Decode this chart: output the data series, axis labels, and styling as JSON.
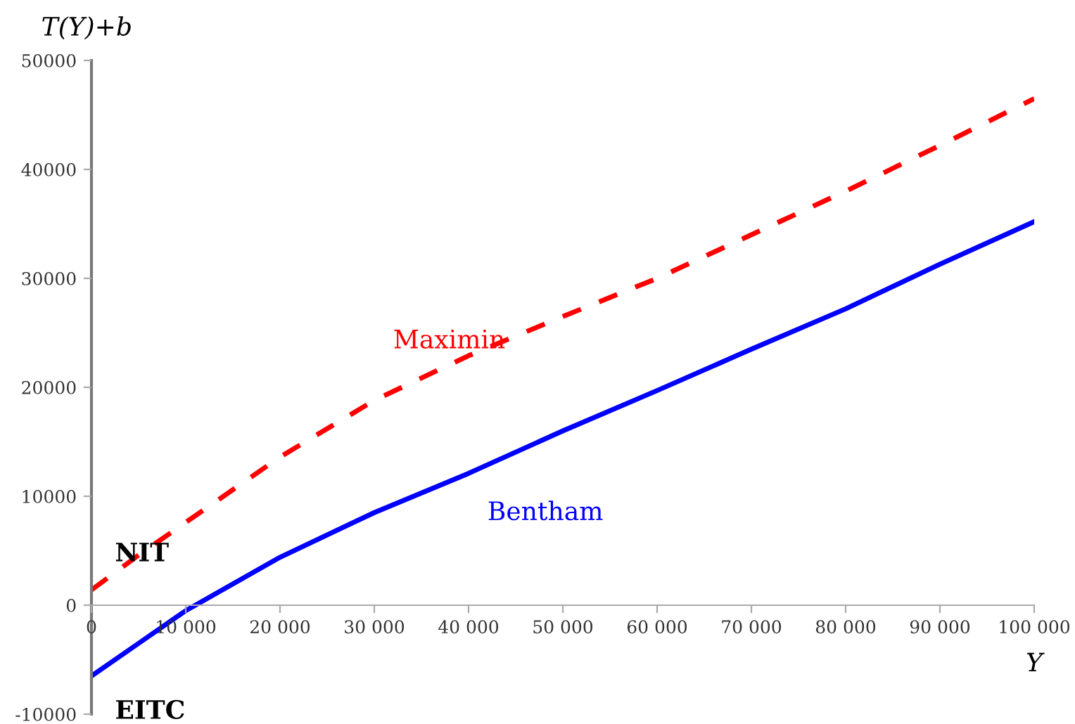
{
  "chart_data": {
    "type": "line",
    "xlabel": "Y",
    "ylabel": "T(Y)+b",
    "x": [
      0,
      5000,
      10000,
      20000,
      30000,
      40000,
      50000,
      60000,
      70000,
      80000,
      90000,
      100000
    ],
    "series": [
      {
        "name": "Maximin",
        "color": "#ff0000",
        "line_style": "dashed",
        "values": [
          1400,
          4600,
          7600,
          13600,
          18800,
          22900,
          26500,
          30000,
          34000,
          38000,
          42200,
          46500
        ]
      },
      {
        "name": "Bentham",
        "color": "#0000ff",
        "line_style": "solid",
        "values": [
          -6500,
          -3500,
          -500,
          4400,
          8500,
          12100,
          16000,
          19700,
          23500,
          27200,
          31300,
          35200
        ]
      }
    ],
    "annotations": [
      {
        "text": "NIT",
        "x": 0,
        "y": 1400
      },
      {
        "text": "EITC",
        "x": 0,
        "y": -6500
      }
    ],
    "xlim": [
      0,
      100000
    ],
    "ylim": [
      -10000,
      50000
    ],
    "xticks": [
      0,
      {
        "value": 10000,
        "label": "10 000"
      },
      {
        "value": 20000,
        "label": "20 000"
      },
      {
        "value": 30000,
        "label": "30 000"
      },
      {
        "value": 40000,
        "label": "40 000"
      },
      {
        "value": 50000,
        "label": "50 000"
      },
      {
        "value": 60000,
        "label": "60 000"
      },
      {
        "value": 70000,
        "label": "70 000"
      },
      {
        "value": 80000,
        "label": "80 000"
      },
      {
        "value": 90000,
        "label": "90 000"
      },
      {
        "value": 100000,
        "label": "100 000"
      }
    ],
    "yticks": [
      -10000,
      0,
      10000,
      20000,
      30000,
      40000,
      50000
    ],
    "grid": false,
    "legend": false,
    "marker": "none"
  }
}
